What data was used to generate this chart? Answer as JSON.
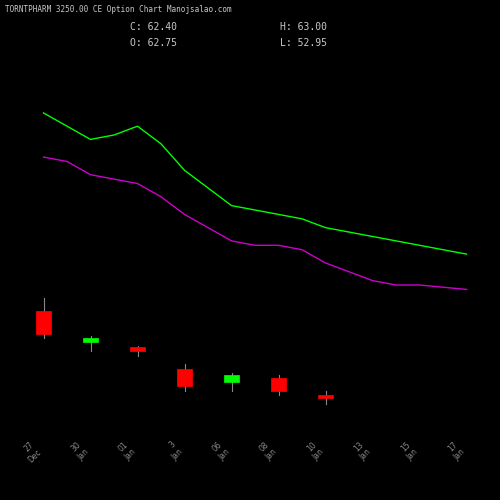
{
  "title": "TORNTPHARM 3250.00 CE Option Chart Manojsalao.com",
  "close": 62.4,
  "open_price": 62.75,
  "high": 63.0,
  "low": 52.95,
  "bg_color": "#000000",
  "text_color": "#c8c8c8",
  "candle_up_color": "#00ff00",
  "candle_down_color": "#ff0000",
  "wick_color_up": "#888888",
  "wick_color_down": "#888888",
  "line1_color": "#00ff00",
  "line2_color": "#cc00cc",
  "xlabel_color": "#888888",
  "x_labels": [
    "27\nDec",
    "30\nJan",
    "01\nJan",
    "3\nJan",
    "06\nJan",
    "08\nJan",
    "10\nJan",
    "13\nJan",
    "15\nJan",
    "17\nJan"
  ],
  "candles": [
    {
      "x": 0,
      "open": 73,
      "close": 68,
      "high": 76,
      "low": 67,
      "color": "down"
    },
    {
      "x": 1,
      "open": 66,
      "close": 67,
      "high": 67.5,
      "low": 64,
      "color": "up"
    },
    {
      "x": 2,
      "open": 65,
      "close": 64,
      "high": 65.2,
      "low": 63,
      "color": "down"
    },
    {
      "x": 3,
      "open": 60,
      "close": 56,
      "high": 61,
      "low": 55,
      "color": "down"
    },
    {
      "x": 4,
      "open": 57,
      "close": 58.5,
      "high": 59,
      "low": 55,
      "color": "up"
    },
    {
      "x": 5,
      "open": 58,
      "close": 55,
      "high": 58.5,
      "low": 54,
      "color": "down"
    },
    {
      "x": 6,
      "open": 54,
      "close": 53.5,
      "high": 55,
      "low": 52,
      "color": "down"
    }
  ],
  "line1_points": [
    [
      0,
      118
    ],
    [
      0.5,
      115
    ],
    [
      1,
      112
    ],
    [
      1.5,
      113
    ],
    [
      2,
      115
    ],
    [
      2.5,
      111
    ],
    [
      3,
      105
    ],
    [
      3.5,
      101
    ],
    [
      4,
      97
    ],
    [
      4.5,
      96
    ],
    [
      5,
      95
    ],
    [
      5.5,
      94
    ],
    [
      6,
      92
    ],
    [
      6.5,
      91
    ],
    [
      7,
      90
    ],
    [
      7.5,
      89
    ],
    [
      8,
      88
    ],
    [
      8.5,
      87
    ],
    [
      9,
      86
    ]
  ],
  "line2_points": [
    [
      0,
      108
    ],
    [
      0.5,
      107
    ],
    [
      1,
      104
    ],
    [
      1.5,
      103
    ],
    [
      2,
      102
    ],
    [
      2.5,
      99
    ],
    [
      3,
      95
    ],
    [
      3.5,
      92
    ],
    [
      4,
      89
    ],
    [
      4.5,
      88
    ],
    [
      5,
      88
    ],
    [
      5.5,
      87
    ],
    [
      6,
      84
    ],
    [
      6.5,
      82
    ],
    [
      7,
      80
    ],
    [
      7.5,
      79
    ],
    [
      8,
      79
    ],
    [
      8.5,
      78.5
    ],
    [
      9,
      78
    ]
  ],
  "ylim": [
    45,
    130
  ],
  "xlim": [
    -0.5,
    9.5
  ]
}
